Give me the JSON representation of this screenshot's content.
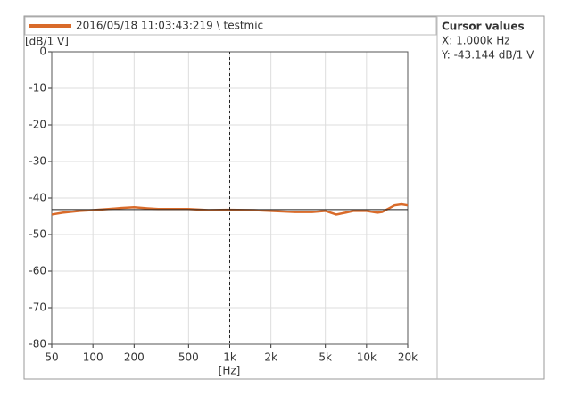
{
  "chart_data": {
    "type": "line",
    "legend_label": "2016/05/18 11:03:43:219 \\ testmic",
    "y_label": "[dB/1 V]",
    "x_label": "[Hz]",
    "x_scale": "log",
    "grid": true,
    "xlim": [
      50,
      20000
    ],
    "ylim": [
      -80,
      0
    ],
    "xticks": [
      50,
      100,
      200,
      500,
      {
        "value": 1000,
        "label": "1k"
      },
      {
        "value": 2000,
        "label": "2k"
      },
      {
        "value": 5000,
        "label": "5k"
      },
      {
        "value": 10000,
        "label": "10k"
      },
      {
        "value": 20000,
        "label": "20k"
      }
    ],
    "yticks": [
      0,
      -10,
      -20,
      -30,
      -40,
      -50,
      -60,
      -70,
      -80
    ],
    "series": [
      {
        "color": "#d96b2a",
        "x": [
          50,
          60,
          80,
          100,
          130,
          160,
          200,
          250,
          300,
          500,
          700,
          1000,
          1500,
          2000,
          3000,
          4000,
          5000,
          6000,
          7000,
          8000,
          10000,
          12000,
          13000,
          16000,
          18000,
          20000
        ],
        "values": [
          -44.5,
          -44,
          -43.5,
          -43.3,
          -43,
          -42.7,
          -42.5,
          -42.8,
          -43,
          -43,
          -43.3,
          -43.2,
          -43.3,
          -43.5,
          -43.8,
          -43.8,
          -43.5,
          -44.5,
          -44,
          -43.5,
          -43.5,
          -44,
          -43.8,
          -42,
          -41.7,
          -42
        ]
      }
    ],
    "cursor": {
      "x": 1000,
      "y": -43.144
    },
    "cursor_panel": {
      "title": "Cursor values",
      "x_text": "X: 1.000k Hz",
      "y_text": "Y: -43.144 dB/1 V"
    }
  }
}
